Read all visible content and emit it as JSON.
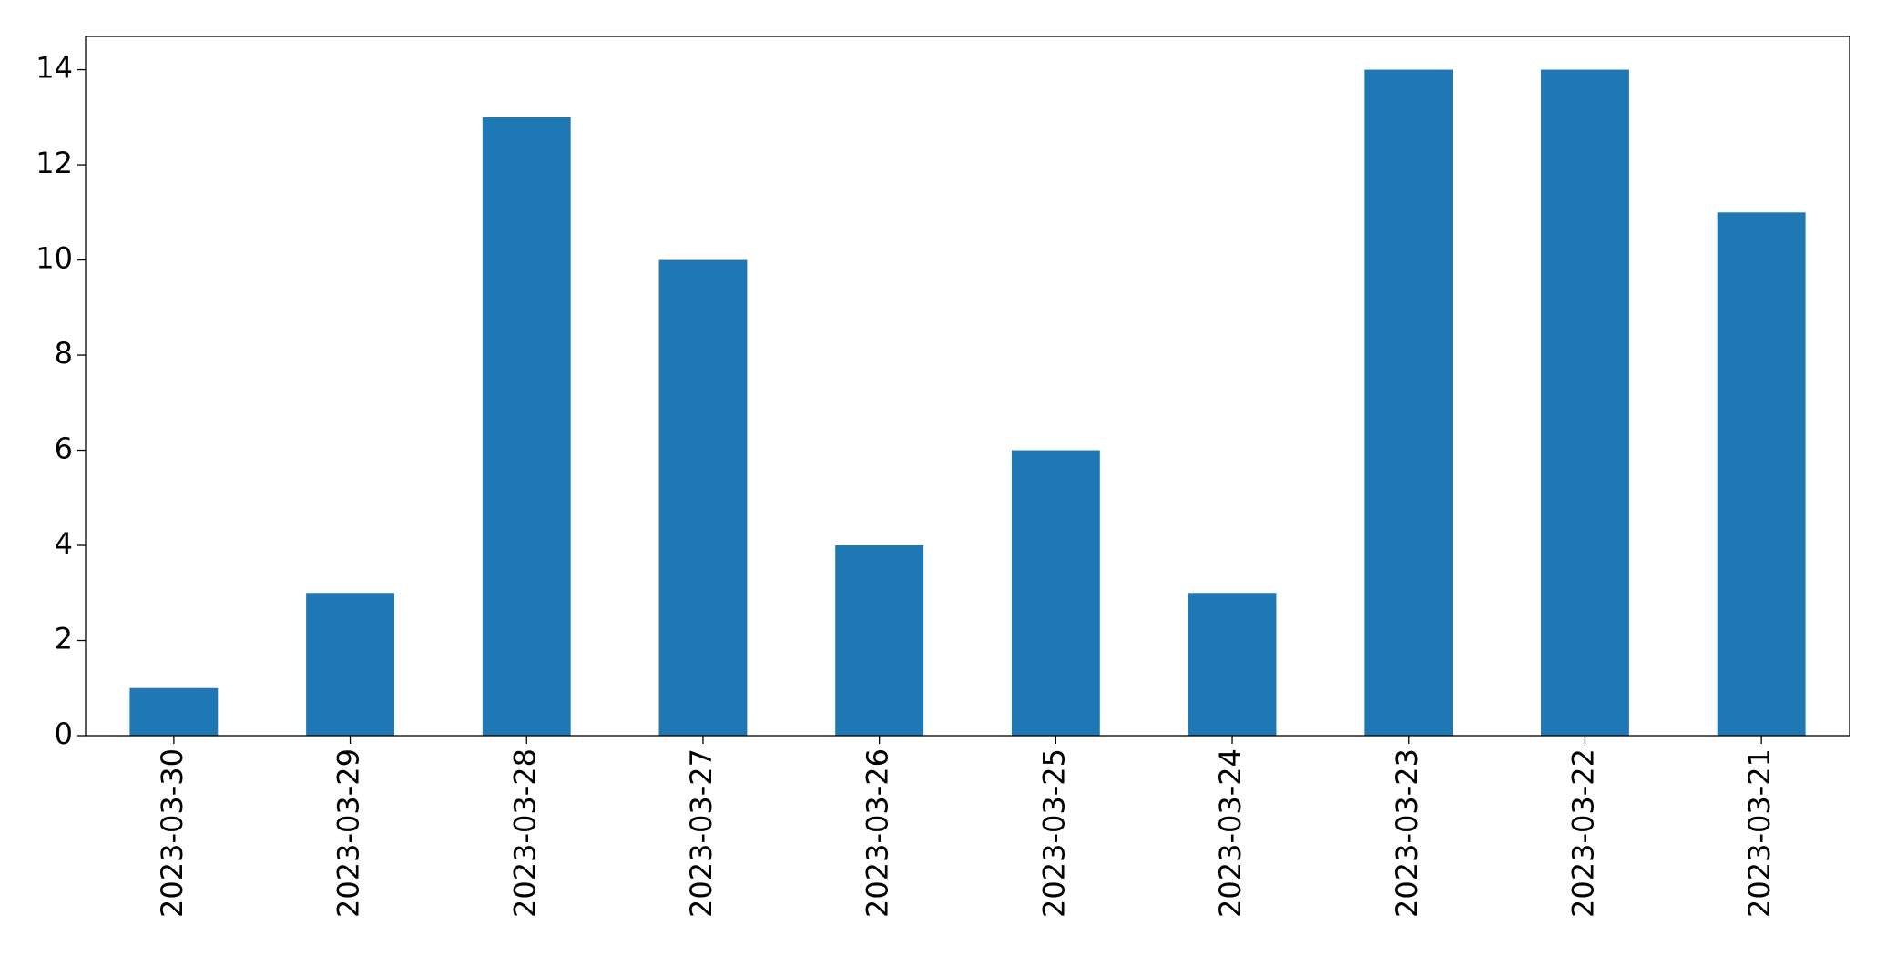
{
  "chart_data": {
    "type": "bar",
    "categories": [
      "2023-03-30",
      "2023-03-29",
      "2023-03-28",
      "2023-03-27",
      "2023-03-26",
      "2023-03-25",
      "2023-03-24",
      "2023-03-23",
      "2023-03-22",
      "2023-03-21"
    ],
    "values": [
      1,
      3,
      13,
      10,
      4,
      6,
      3,
      14,
      14,
      11
    ],
    "color": "#1f77b4",
    "ylim": [
      0,
      14.7
    ],
    "yticks": [
      0,
      2,
      4,
      6,
      8,
      10,
      12,
      14
    ],
    "grid": false
  }
}
